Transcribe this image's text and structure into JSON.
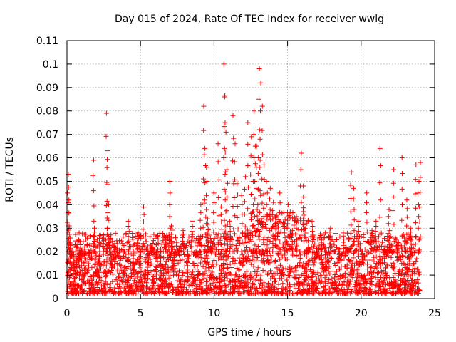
{
  "chart_data": {
    "type": "scatter",
    "title": "Day 015 of 2024, Rate Of TEC Index for receiver wwlg",
    "xlabel": "GPS time / hours",
    "ylabel": "ROTI / TECUs",
    "xlim": [
      0,
      25
    ],
    "ylim": [
      0,
      0.11
    ],
    "grid": true,
    "x_ticks": [
      0,
      5,
      10,
      15,
      20,
      25
    ],
    "x_tick_labels": [
      "0",
      "5",
      "10",
      "15",
      "20",
      "25"
    ],
    "y_ticks": [
      0,
      0.01,
      0.02,
      0.03,
      0.04,
      0.05,
      0.06,
      0.07,
      0.08,
      0.09,
      0.1,
      0.11
    ],
    "y_tick_labels": [
      "0",
      "0.01",
      "0.02",
      "0.03",
      "0.04",
      "0.05",
      "0.06",
      "0.07",
      "0.08",
      "0.09",
      "0.1",
      "0.11"
    ],
    "marker": "+",
    "series": [
      {
        "name": "ROTI",
        "color": "#ff0000",
        "x": [
          0.05,
          0.1,
          0.15,
          0.2,
          0.3,
          0.45,
          0.6,
          0.8,
          1.0,
          1.2,
          1.5,
          1.8,
          1.9,
          2.2,
          2.5,
          2.7,
          2.75,
          2.8,
          3.0,
          3.3,
          3.6,
          3.9,
          4.2,
          4.5,
          4.8,
          5.0,
          5.2,
          5.5,
          5.8,
          6.1,
          6.4,
          6.7,
          7.0,
          7.1,
          7.3,
          7.6,
          7.9,
          8.2,
          8.5,
          8.8,
          9.1,
          9.3,
          9.4,
          9.5,
          9.6,
          9.8,
          10.0,
          10.3,
          10.5,
          10.7,
          10.75,
          10.8,
          10.9,
          11.1,
          11.3,
          11.4,
          11.6,
          11.9,
          12.1,
          12.3,
          12.5,
          12.7,
          12.8,
          12.9,
          13.0,
          13.1,
          13.15,
          13.3,
          13.4,
          13.6,
          13.8,
          14.0,
          14.2,
          14.5,
          14.8,
          15.0,
          15.3,
          15.6,
          15.9,
          16.1,
          16.4,
          16.7,
          17.0,
          17.3,
          17.6,
          17.9,
          18.2,
          18.5,
          18.8,
          19.1,
          19.3,
          19.5,
          19.8,
          20.1,
          20.4,
          20.7,
          21.0,
          21.3,
          21.6,
          21.9,
          22.2,
          22.5,
          22.8,
          23.1,
          23.4,
          23.7,
          23.9,
          24.0
        ],
        "y": [
          0.045,
          0.053,
          0.031,
          0.024,
          0.018,
          0.012,
          0.009,
          0.016,
          0.008,
          0.011,
          0.019,
          0.059,
          0.03,
          0.014,
          0.027,
          0.079,
          0.063,
          0.04,
          0.012,
          0.017,
          0.009,
          0.02,
          0.033,
          0.011,
          0.028,
          0.014,
          0.039,
          0.012,
          0.022,
          0.017,
          0.008,
          0.026,
          0.05,
          0.031,
          0.015,
          0.02,
          0.029,
          0.011,
          0.033,
          0.018,
          0.04,
          0.082,
          0.064,
          0.056,
          0.034,
          0.022,
          0.045,
          0.066,
          0.039,
          0.1,
          0.086,
          0.071,
          0.055,
          0.033,
          0.078,
          0.066,
          0.049,
          0.044,
          0.052,
          0.075,
          0.069,
          0.08,
          0.065,
          0.074,
          0.06,
          0.098,
          0.092,
          0.082,
          0.057,
          0.05,
          0.047,
          0.041,
          0.035,
          0.045,
          0.032,
          0.04,
          0.029,
          0.035,
          0.062,
          0.048,
          0.022,
          0.033,
          0.018,
          0.026,
          0.012,
          0.03,
          0.02,
          0.016,
          0.028,
          0.021,
          0.054,
          0.047,
          0.033,
          0.016,
          0.045,
          0.029,
          0.033,
          0.064,
          0.021,
          0.038,
          0.055,
          0.024,
          0.06,
          0.042,
          0.03,
          0.057,
          0.05,
          0.058
        ],
        "baseline_note": "dense band of points between 0.002 and 0.03 TECUs across 0–24 h"
      }
    ]
  }
}
